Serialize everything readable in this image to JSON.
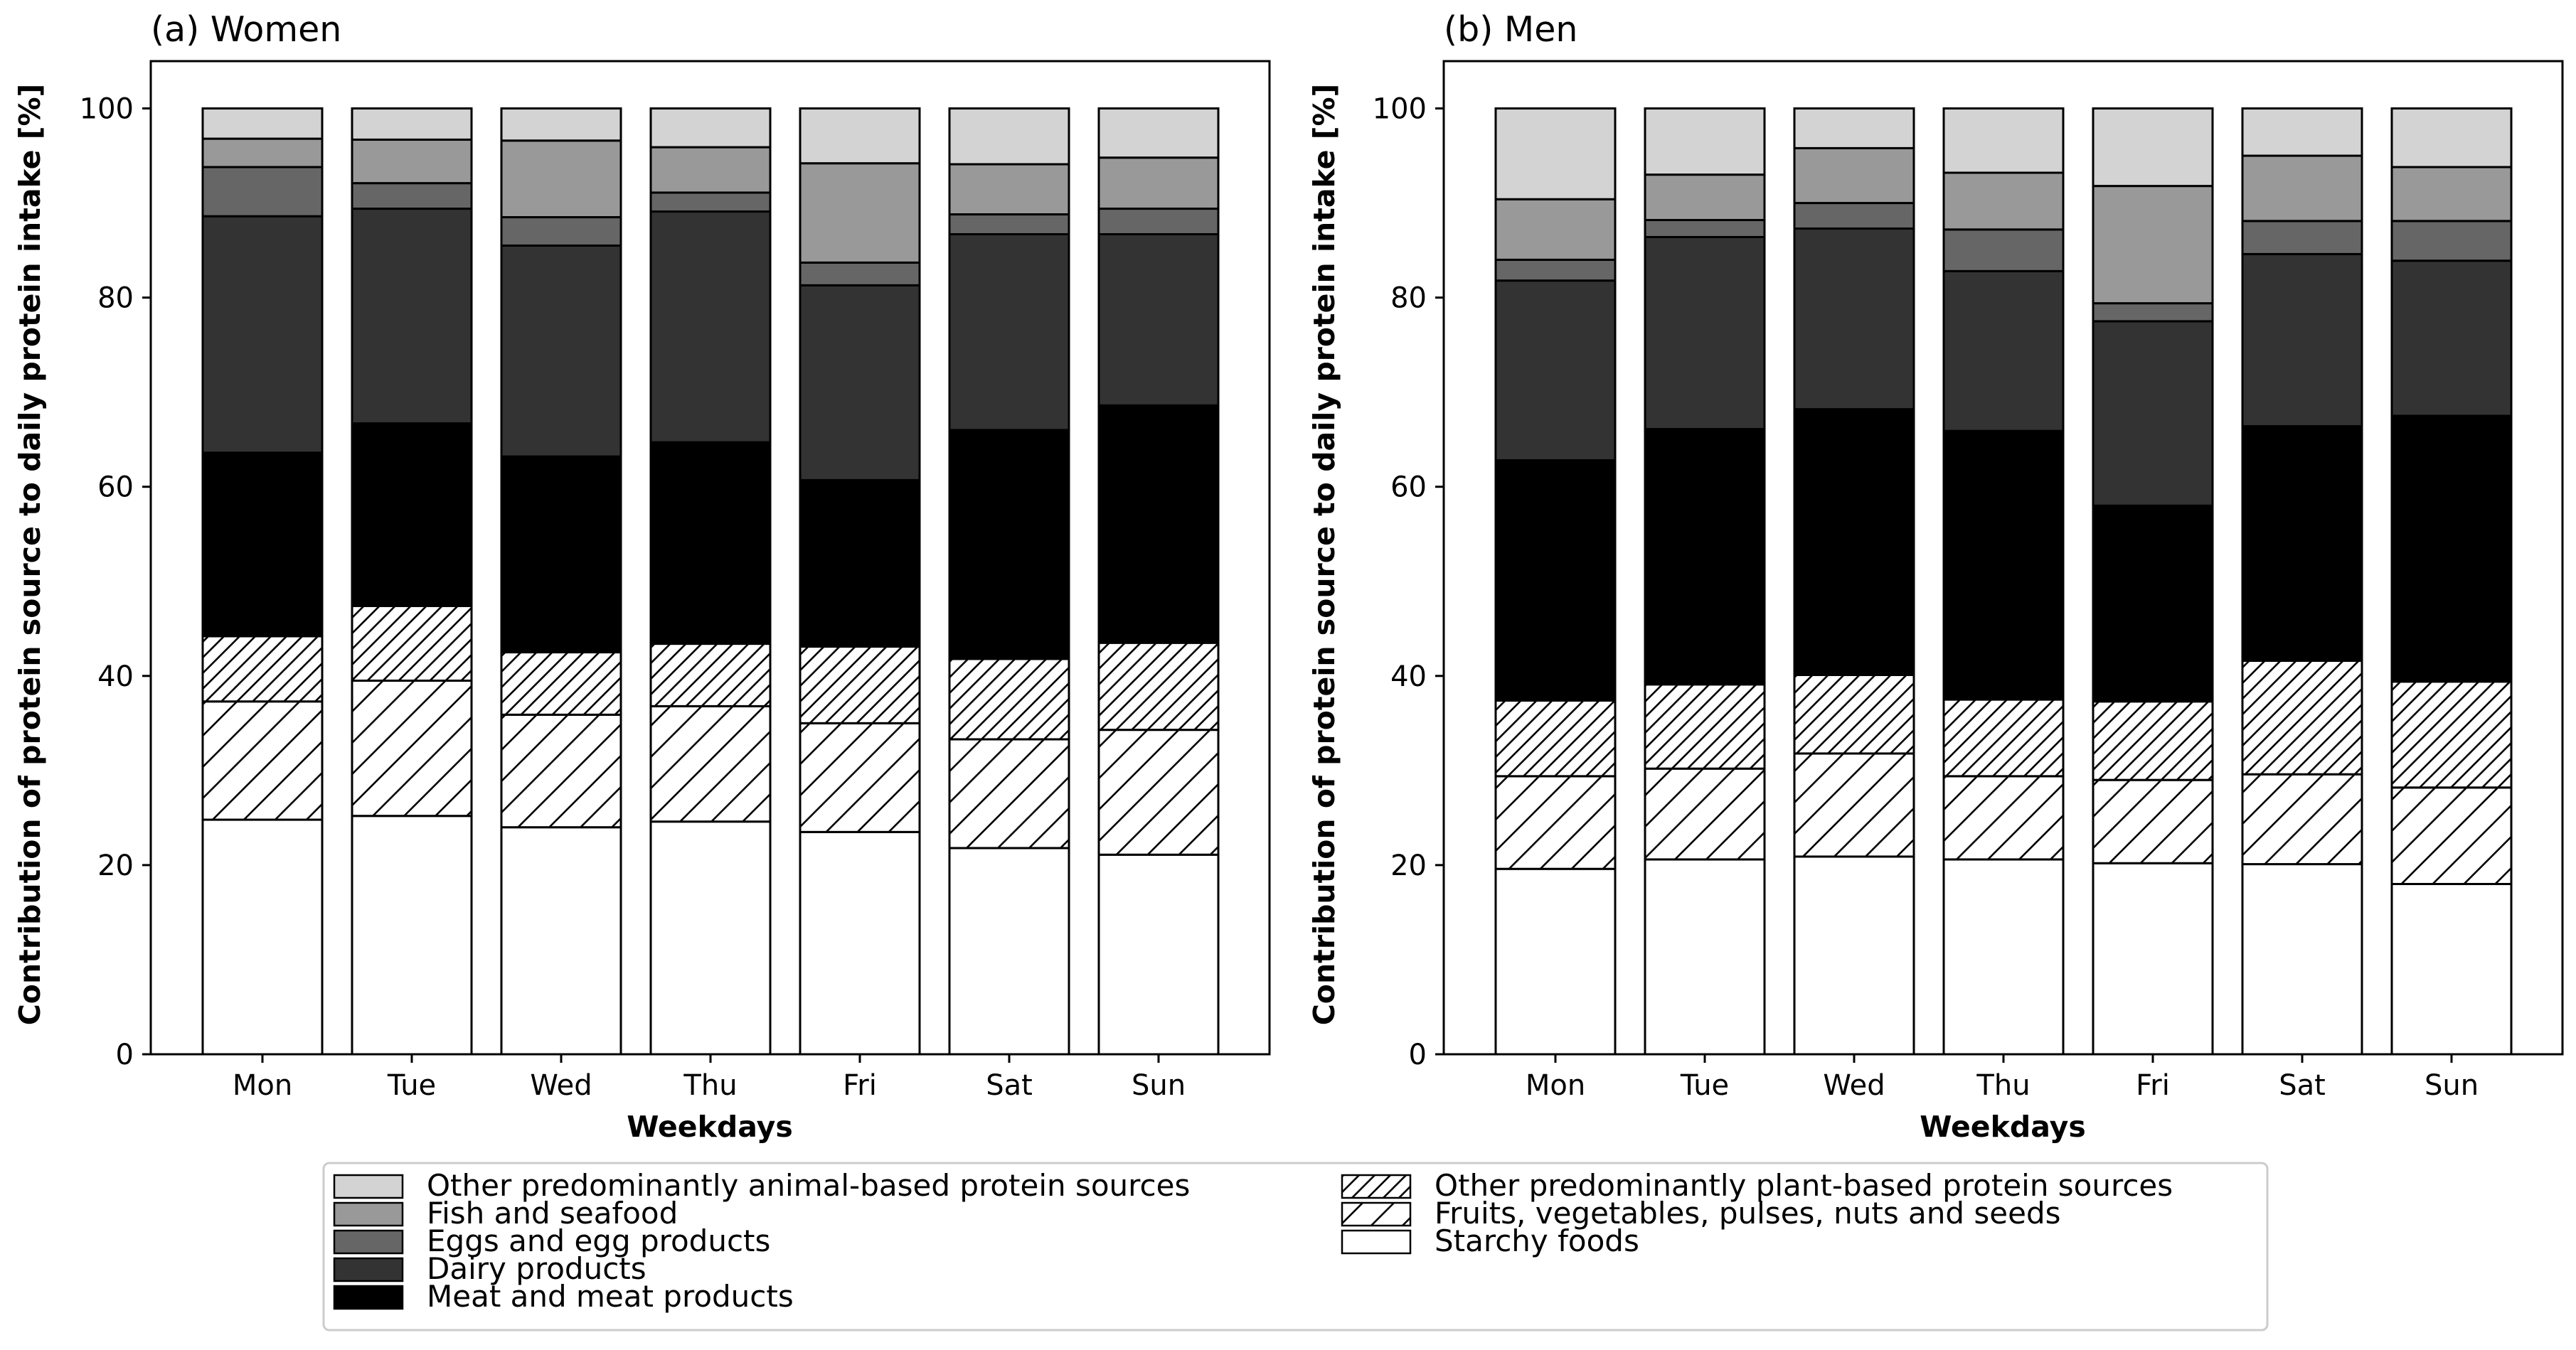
{
  "chart_data": {
    "type": "stacked-bar",
    "categories": [
      "Mon",
      "Tue",
      "Wed",
      "Thu",
      "Fri",
      "Sat",
      "Sun"
    ],
    "xlabel": "Weekdays",
    "ylabel": "Contribution of protein source to daily protein intake [%]",
    "ylim": [
      0,
      105
    ],
    "yticks": [
      0,
      20,
      40,
      60,
      80,
      100
    ],
    "legend": [
      {
        "name": "Other predominantly animal-based protein sources",
        "fill": "#d3d3d3"
      },
      {
        "name": "Fish and seafood",
        "fill": "#999999"
      },
      {
        "name": "Eggs and egg products",
        "fill": "#666666"
      },
      {
        "name": "Dairy products",
        "fill": "#333333"
      },
      {
        "name": "Meat and meat products",
        "fill": "#000000"
      },
      {
        "name": "Other predominantly plant-based protein sources",
        "fill": "hatch-dense"
      },
      {
        "name": "Fruits, vegetables, pulses, nuts and seeds",
        "fill": "hatch-sparse"
      },
      {
        "name": "Starchy foods",
        "fill": "#ffffff"
      }
    ],
    "stack_order": [
      "Starchy foods",
      "Fruits, vegetables, pulses, nuts and seeds",
      "Other predominantly plant-based protein sources",
      "Meat and meat products",
      "Dairy products",
      "Eggs and egg products",
      "Fish and seafood",
      "Other predominantly animal-based protein sources"
    ],
    "panels": [
      {
        "title": "(a) Women",
        "series": [
          {
            "name": "Starchy foods",
            "values": [
              24.8,
              25.2,
              24.0,
              24.6,
              23.5,
              21.8,
              21.1
            ]
          },
          {
            "name": "Fruits, vegetables, pulses, nuts and seeds",
            "values": [
              12.5,
              14.3,
              11.9,
              12.2,
              11.5,
              11.5,
              13.2
            ]
          },
          {
            "name": "Other predominantly plant-based protein sources",
            "values": [
              6.9,
              7.9,
              6.6,
              6.6,
              8.1,
              8.5,
              9.2
            ]
          },
          {
            "name": "Meat and meat products",
            "values": [
              19.4,
              19.3,
              20.7,
              21.3,
              17.6,
              24.2,
              25.1
            ]
          },
          {
            "name": "Dairy products",
            "values": [
              25.0,
              22.7,
              22.3,
              24.4,
              20.6,
              20.7,
              18.1
            ]
          },
          {
            "name": "Eggs and egg products",
            "values": [
              5.2,
              2.7,
              3.0,
              2.0,
              2.4,
              2.1,
              2.7
            ]
          },
          {
            "name": "Fish and seafood",
            "values": [
              3.0,
              4.6,
              8.1,
              4.8,
              10.5,
              5.3,
              5.4
            ]
          },
          {
            "name": "Other predominantly animal-based protein sources",
            "values": [
              3.2,
              3.3,
              3.4,
              4.1,
              5.8,
              5.9,
              5.2
            ]
          }
        ]
      },
      {
        "title": "(b) Men",
        "series": [
          {
            "name": "Starchy foods",
            "values": [
              19.6,
              20.6,
              20.9,
              20.6,
              20.2,
              20.1,
              18.0
            ]
          },
          {
            "name": "Fruits, vegetables, pulses, nuts and seeds",
            "values": [
              9.8,
              9.6,
              10.9,
              8.8,
              8.8,
              9.5,
              10.2
            ]
          },
          {
            "name": "Other predominantly plant-based protein sources",
            "values": [
              8.0,
              8.9,
              8.3,
              8.1,
              8.3,
              12.0,
              11.2
            ]
          },
          {
            "name": "Meat and meat products",
            "values": [
              25.4,
              27.0,
              28.1,
              28.4,
              20.7,
              24.8,
              28.1
            ]
          },
          {
            "name": "Dairy products",
            "values": [
              19.0,
              20.3,
              19.1,
              16.9,
              19.5,
              18.2,
              16.4
            ]
          },
          {
            "name": "Eggs and egg products",
            "values": [
              2.2,
              1.8,
              2.7,
              4.4,
              1.9,
              3.5,
              4.2
            ]
          },
          {
            "name": "Fish and seafood",
            "values": [
              6.4,
              4.8,
              5.8,
              6.0,
              12.4,
              6.9,
              5.7
            ]
          },
          {
            "name": "Other predominantly animal-based protein sources",
            "values": [
              9.6,
              7.0,
              4.2,
              6.8,
              8.2,
              5.0,
              6.2
            ]
          }
        ]
      }
    ]
  }
}
